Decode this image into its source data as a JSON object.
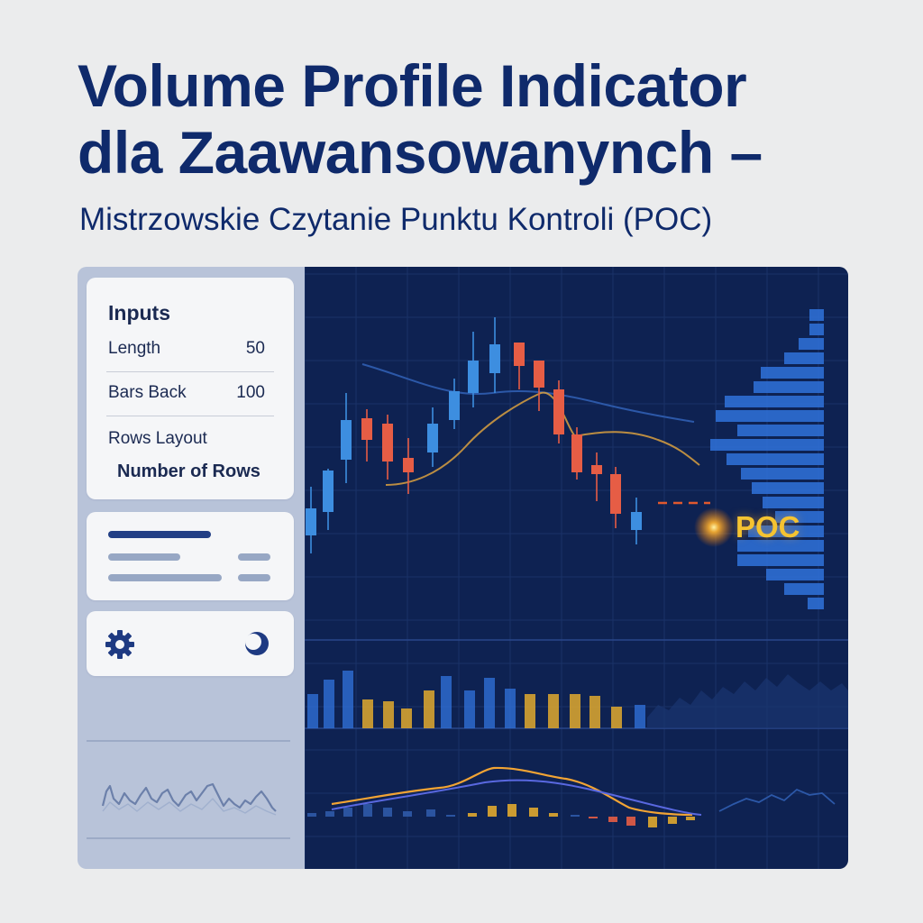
{
  "header": {
    "title_line1": "Volume Profile Indicator",
    "title_line2": "dla Zaawansowanynch –",
    "subtitle": "Mistrzowskie Czytanie Punktu Kontroli (POC)"
  },
  "inputs_panel": {
    "heading": "Inputs",
    "fields": [
      {
        "label": "Length",
        "value": "50"
      },
      {
        "label": "Bars Back",
        "value": "100"
      }
    ],
    "rows_layout_label": "Rows Layout",
    "rows_layout_value": "Number of Rows"
  },
  "icons": {
    "settings": "gear-icon",
    "theme": "theme-toggle-icon"
  },
  "chart": {
    "poc_label": "POC",
    "colors": {
      "bullish": "#3d8ee0",
      "bearish": "#e65d45",
      "poc": "#f5a623",
      "moving_average": "#d9a040",
      "upper_band": "#2f5aa8",
      "profile": "#2f6fd6",
      "volume_high": "#e0a92e",
      "volume_low": "#2f6fd6"
    }
  }
}
